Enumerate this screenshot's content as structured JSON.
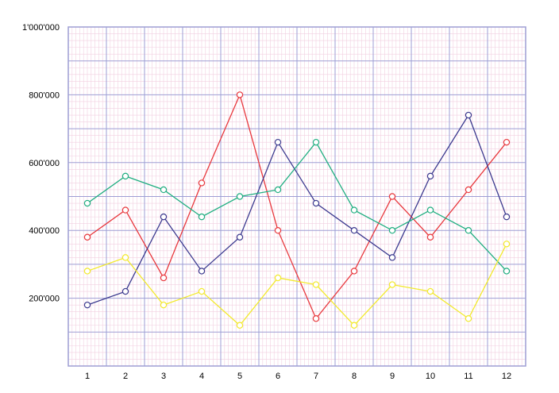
{
  "chart_data": {
    "type": "line",
    "x": [
      "1",
      "2",
      "3",
      "4",
      "5",
      "6",
      "7",
      "8",
      "9",
      "10",
      "11",
      "12"
    ],
    "ylim": [
      0,
      1000000
    ],
    "y_ticks": [
      {
        "value": 200000,
        "label": "200'000"
      },
      {
        "value": 400000,
        "label": "400'000"
      },
      {
        "value": 600000,
        "label": "600'000"
      },
      {
        "value": 800000,
        "label": "800'000"
      },
      {
        "value": 1000000,
        "label": "1'000'000"
      }
    ],
    "grid": true,
    "colors": {
      "grid_major": "#9e9ed4",
      "grid_minor": "#f2cfe0",
      "frame": "#9e9ed4"
    },
    "series": [
      {
        "color": "#e8383d",
        "values": [
          380000,
          460000,
          260000,
          540000,
          800000,
          400000,
          140000,
          280000,
          500000,
          380000,
          520000,
          660000
        ]
      },
      {
        "color": "#3c3a8f",
        "values": [
          180000,
          220000,
          440000,
          280000,
          380000,
          660000,
          480000,
          400000,
          320000,
          560000,
          740000,
          440000
        ]
      },
      {
        "color": "#1fae80",
        "values": [
          480000,
          560000,
          520000,
          440000,
          500000,
          520000,
          660000,
          460000,
          400000,
          460000,
          400000,
          280000
        ]
      },
      {
        "color": "#f2ea2c",
        "values": [
          280000,
          320000,
          180000,
          220000,
          120000,
          260000,
          240000,
          120000,
          240000,
          220000,
          140000,
          360000
        ]
      }
    ]
  }
}
